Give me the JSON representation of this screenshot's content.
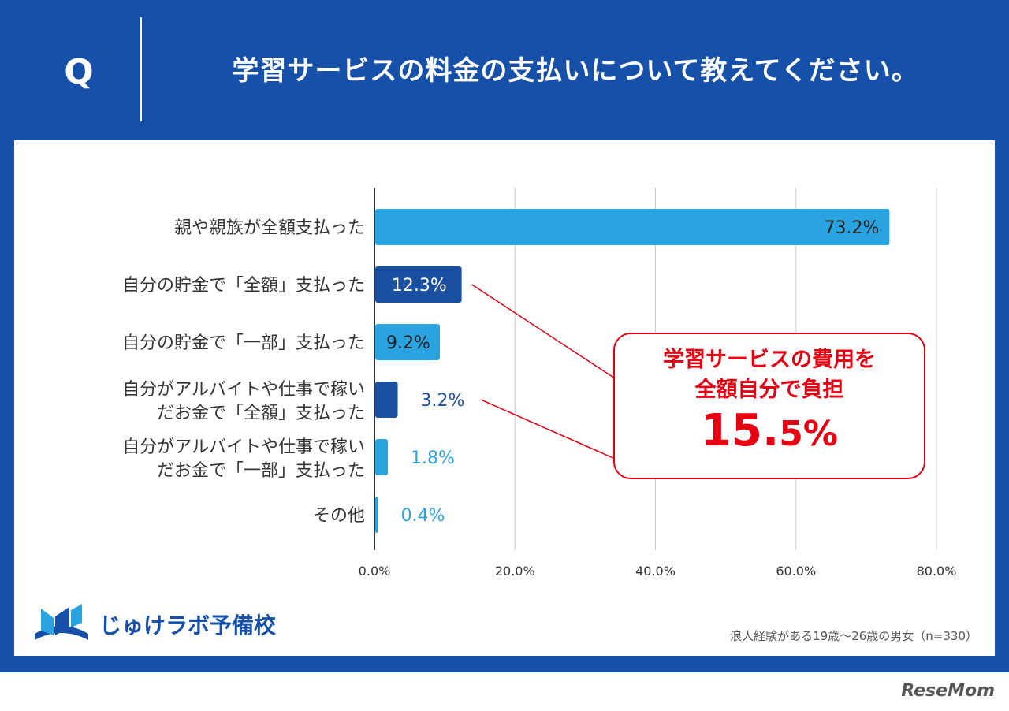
{
  "header": {
    "q_letter": "Q",
    "title": "学習サービスの料金の支払いについて教えてください。"
  },
  "chart_data": {
    "type": "bar",
    "orientation": "horizontal",
    "categories": [
      [
        "親や親族が全額支払った"
      ],
      [
        "自分の貯金で「全額」支払った"
      ],
      [
        "自分の貯金で「一部」支払った"
      ],
      [
        "自分がアルバイトや仕事で稼い",
        "だお金で「全額」支払った"
      ],
      [
        "自分がアルバイトや仕事で稼い",
        "だお金で「一部」支払った"
      ],
      [
        "その他"
      ]
    ],
    "values": [
      73.2,
      12.3,
      9.2,
      3.2,
      1.8,
      0.4
    ],
    "value_labels": [
      "73.2%",
      "12.3%",
      "9.2%",
      "3.2%",
      "1.8%",
      "0.4%"
    ],
    "bar_colors": [
      "#29a4e0",
      "#1b4fa0",
      "#29a4e0",
      "#1b4fa0",
      "#29a4e0",
      "#29a4e0"
    ],
    "xlim": [
      0,
      80
    ],
    "xticks": [
      0,
      20,
      40,
      60,
      80
    ],
    "xtick_labels": [
      "0.0%",
      "20.0%",
      "40.0%",
      "60.0%",
      "80.0%"
    ],
    "grid": true
  },
  "callout": {
    "line1": "学習サービスの費用を",
    "line2": "全額自分で負担",
    "big_int": "15.",
    "big_dec": "5%",
    "color": "#e60012"
  },
  "footer": {
    "logo_text": "じゅけラボ予備校",
    "note": "浪人経験がある19歳～26歳の男女（n=330）",
    "credit": "ReseMom"
  },
  "colors": {
    "frame": "#1650a8",
    "light_bar": "#29a4e0",
    "dark_bar": "#1b4fa0"
  }
}
